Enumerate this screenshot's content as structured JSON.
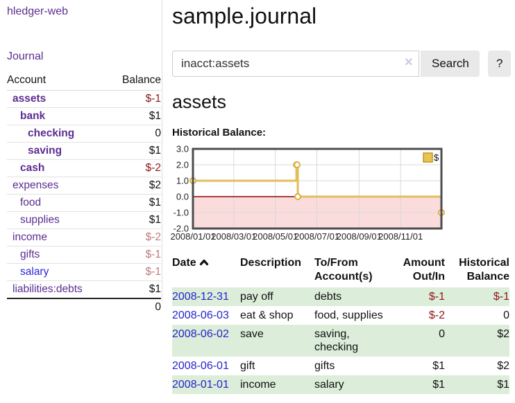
{
  "palette": {
    "link_purple": "#5b2d91",
    "link_blue": "#2323cc",
    "negative_strong": "#8c1616",
    "negative_soft": "#c0797c",
    "row_stripe_green": "#dcedda",
    "chart_line_gold": "#e3bd59",
    "chart_negative_pink": "#fbdcdc",
    "chart_zero_red": "#8b0000"
  },
  "sidebar": {
    "brand": "hledger-web",
    "journal_link": "Journal",
    "accounts": {
      "col_account": "Account",
      "col_balance": "Balance",
      "rows": [
        {
          "name": "assets",
          "indent": 1,
          "bold": true,
          "balance": "$-1",
          "balance_style": "neg-strong"
        },
        {
          "name": "bank",
          "indent": 2,
          "bold": true,
          "balance": "$1",
          "balance_style": ""
        },
        {
          "name": "checking",
          "indent": 3,
          "bold": true,
          "balance": "0",
          "balance_style": ""
        },
        {
          "name": "saving",
          "indent": 3,
          "bold": true,
          "balance": "$1",
          "balance_style": ""
        },
        {
          "name": "cash",
          "indent": 2,
          "bold": true,
          "balance": "$-2",
          "balance_style": "neg-strong"
        },
        {
          "name": "expenses",
          "indent": 1,
          "bold": false,
          "balance": "$2",
          "balance_style": ""
        },
        {
          "name": "food",
          "indent": 2,
          "bold": false,
          "balance": "$1",
          "balance_style": ""
        },
        {
          "name": "supplies",
          "indent": 2,
          "bold": false,
          "balance": "$1",
          "balance_style": ""
        },
        {
          "name": "income",
          "indent": 1,
          "bold": false,
          "balance": "$-2",
          "balance_style": "neg-soft"
        },
        {
          "name": "gifts",
          "indent": 2,
          "bold": false,
          "balance": "$-1",
          "balance_style": "neg-soft"
        },
        {
          "name": "salary",
          "indent": 2,
          "bold": false,
          "balance": "$-1",
          "balance_style": "neg-soft",
          "link_variant": "blue"
        },
        {
          "name": "liabilities:debts",
          "indent": 1,
          "bold": false,
          "balance": "$1",
          "balance_style": ""
        }
      ],
      "total": "0"
    }
  },
  "main": {
    "title": "sample.journal",
    "search": {
      "value": "inacct:assets",
      "clear_icon": "✕",
      "button_label": "Search",
      "help_label": "?"
    },
    "account_heading": "assets",
    "chart_label": "Historical Balance:"
  },
  "chart_data": {
    "type": "line",
    "title": "Historical Balance",
    "step": "after",
    "legend": [
      {
        "label": "$",
        "color": "#e8c34f"
      }
    ],
    "x_domain": [
      "2008-01-01",
      "2008-12-31"
    ],
    "ylim": [
      -2,
      3
    ],
    "y_ticks": [
      "3.0",
      "2.0",
      "1.0",
      "0.0",
      "-1.0",
      "-2.0"
    ],
    "x_ticks": [
      "2008/01/01",
      "2008/03/01",
      "2008/05/01",
      "2008/07/01",
      "2008/09/01",
      "2008/11/01"
    ],
    "points": [
      {
        "date": "2008-01-01",
        "value": 1
      },
      {
        "date": "2008-06-01",
        "value": 2
      },
      {
        "date": "2008-06-02",
        "value": 2
      },
      {
        "date": "2008-06-03",
        "value": 0
      },
      {
        "date": "2008-12-31",
        "value": -1
      }
    ]
  },
  "transactions": {
    "headers": {
      "date": "Date",
      "description": "Description",
      "accounts": "To/From Account(s)",
      "amount": "Amount Out/In",
      "balance": "Historical Balance"
    },
    "rows": [
      {
        "date": "2008-12-31",
        "description": "pay off",
        "accounts": "debts",
        "amount": "$-1",
        "amount_neg": true,
        "balance": "$-1",
        "balance_neg": true
      },
      {
        "date": "2008-06-03",
        "description": "eat & shop",
        "accounts": "food, supplies",
        "amount": "$-2",
        "amount_neg": true,
        "balance": "0",
        "balance_neg": false
      },
      {
        "date": "2008-06-02",
        "description": "save",
        "accounts": "saving, checking",
        "amount": "0",
        "amount_neg": false,
        "balance": "$2",
        "balance_neg": false
      },
      {
        "date": "2008-06-01",
        "description": "gift",
        "accounts": "gifts",
        "amount": "$1",
        "amount_neg": false,
        "balance": "$2",
        "balance_neg": false
      },
      {
        "date": "2008-01-01",
        "description": "income",
        "accounts": "salary",
        "amount": "$1",
        "amount_neg": false,
        "balance": "$1",
        "balance_neg": false
      }
    ]
  }
}
